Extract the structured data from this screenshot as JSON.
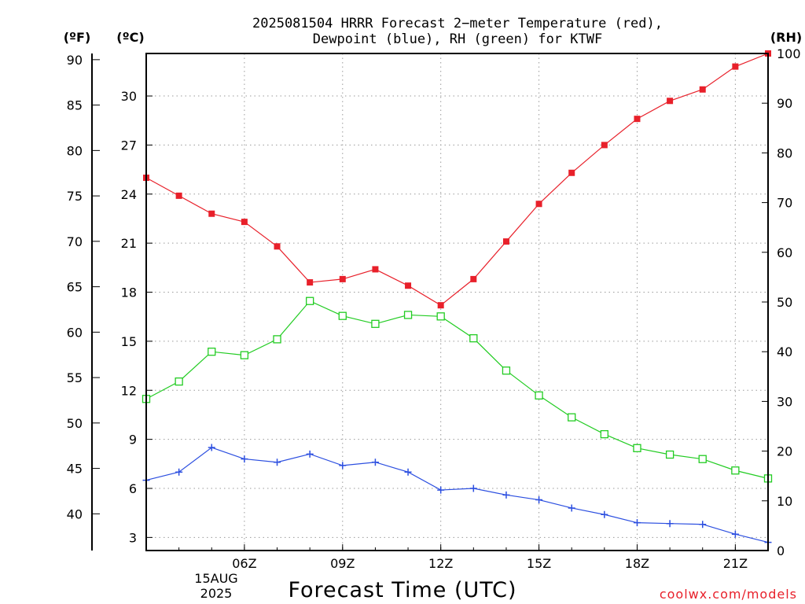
{
  "chart_data": {
    "type": "line",
    "title_lines": [
      "2025081504 HRRR Forecast 2−meter Temperature (red),",
      "Dewpoint (blue), RH (green) for KTWF"
    ],
    "unit_labels": {
      "fahrenheit": "(ºF)",
      "celsius": "(ºC)",
      "rh": "(RH)"
    },
    "xlabel": "Forecast Time (UTC)",
    "date_label": [
      "15AUG",
      "2025"
    ],
    "credit": "coolwx.com/models",
    "x_hours": [
      3,
      4,
      5,
      6,
      7,
      8,
      9,
      10,
      11,
      12,
      13,
      14,
      15,
      16,
      17,
      18,
      19,
      20,
      21,
      22
    ],
    "xlim": [
      3,
      22
    ],
    "x_ticks": [
      {
        "hour": 6,
        "label": "06Z"
      },
      {
        "hour": 9,
        "label": "09Z"
      },
      {
        "hour": 12,
        "label": "12Z"
      },
      {
        "hour": 15,
        "label": "15Z"
      },
      {
        "hour": 18,
        "label": "18Z"
      },
      {
        "hour": 21,
        "label": "21Z"
      }
    ],
    "ylim_celsius": [
      2.2,
      32.6
    ],
    "ylim_rh": [
      0,
      100
    ],
    "celsius_ticks": [
      3,
      6,
      9,
      12,
      15,
      18,
      21,
      24,
      27,
      30
    ],
    "fahrenheit_ticks": [
      40,
      45,
      50,
      55,
      60,
      65,
      70,
      75,
      80,
      85,
      90
    ],
    "rh_ticks": [
      0,
      10,
      20,
      30,
      40,
      50,
      60,
      70,
      80,
      90,
      100
    ],
    "grid": true,
    "series": [
      {
        "name": "Temperature (red)",
        "axis": "celsius",
        "color": "#e8202a",
        "marker": "filled-square",
        "values": [
          25.0,
          23.9,
          22.8,
          22.3,
          20.8,
          18.6,
          18.8,
          19.4,
          18.4,
          17.2,
          18.8,
          21.1,
          23.4,
          25.3,
          27.0,
          28.6,
          29.7,
          30.4,
          31.8,
          32.6
        ]
      },
      {
        "name": "Dewpoint (blue)",
        "axis": "celsius",
        "color": "#2c4fe0",
        "marker": "plus",
        "values": [
          6.5,
          7.0,
          8.5,
          7.8,
          7.6,
          8.1,
          7.4,
          7.6,
          7.0,
          5.9,
          6.0,
          5.6,
          5.3,
          4.8,
          4.4,
          3.9,
          3.85,
          3.8,
          3.2,
          2.7
        ]
      },
      {
        "name": "RH (green)",
        "axis": "rh",
        "color": "#22cc22",
        "marker": "open-square",
        "values": [
          30.5,
          34.0,
          40.0,
          39.3,
          42.5,
          50.2,
          47.2,
          45.6,
          47.4,
          47.1,
          42.7,
          36.2,
          31.2,
          26.8,
          23.4,
          20.6,
          19.3,
          18.4,
          16.1,
          14.5
        ]
      }
    ]
  }
}
